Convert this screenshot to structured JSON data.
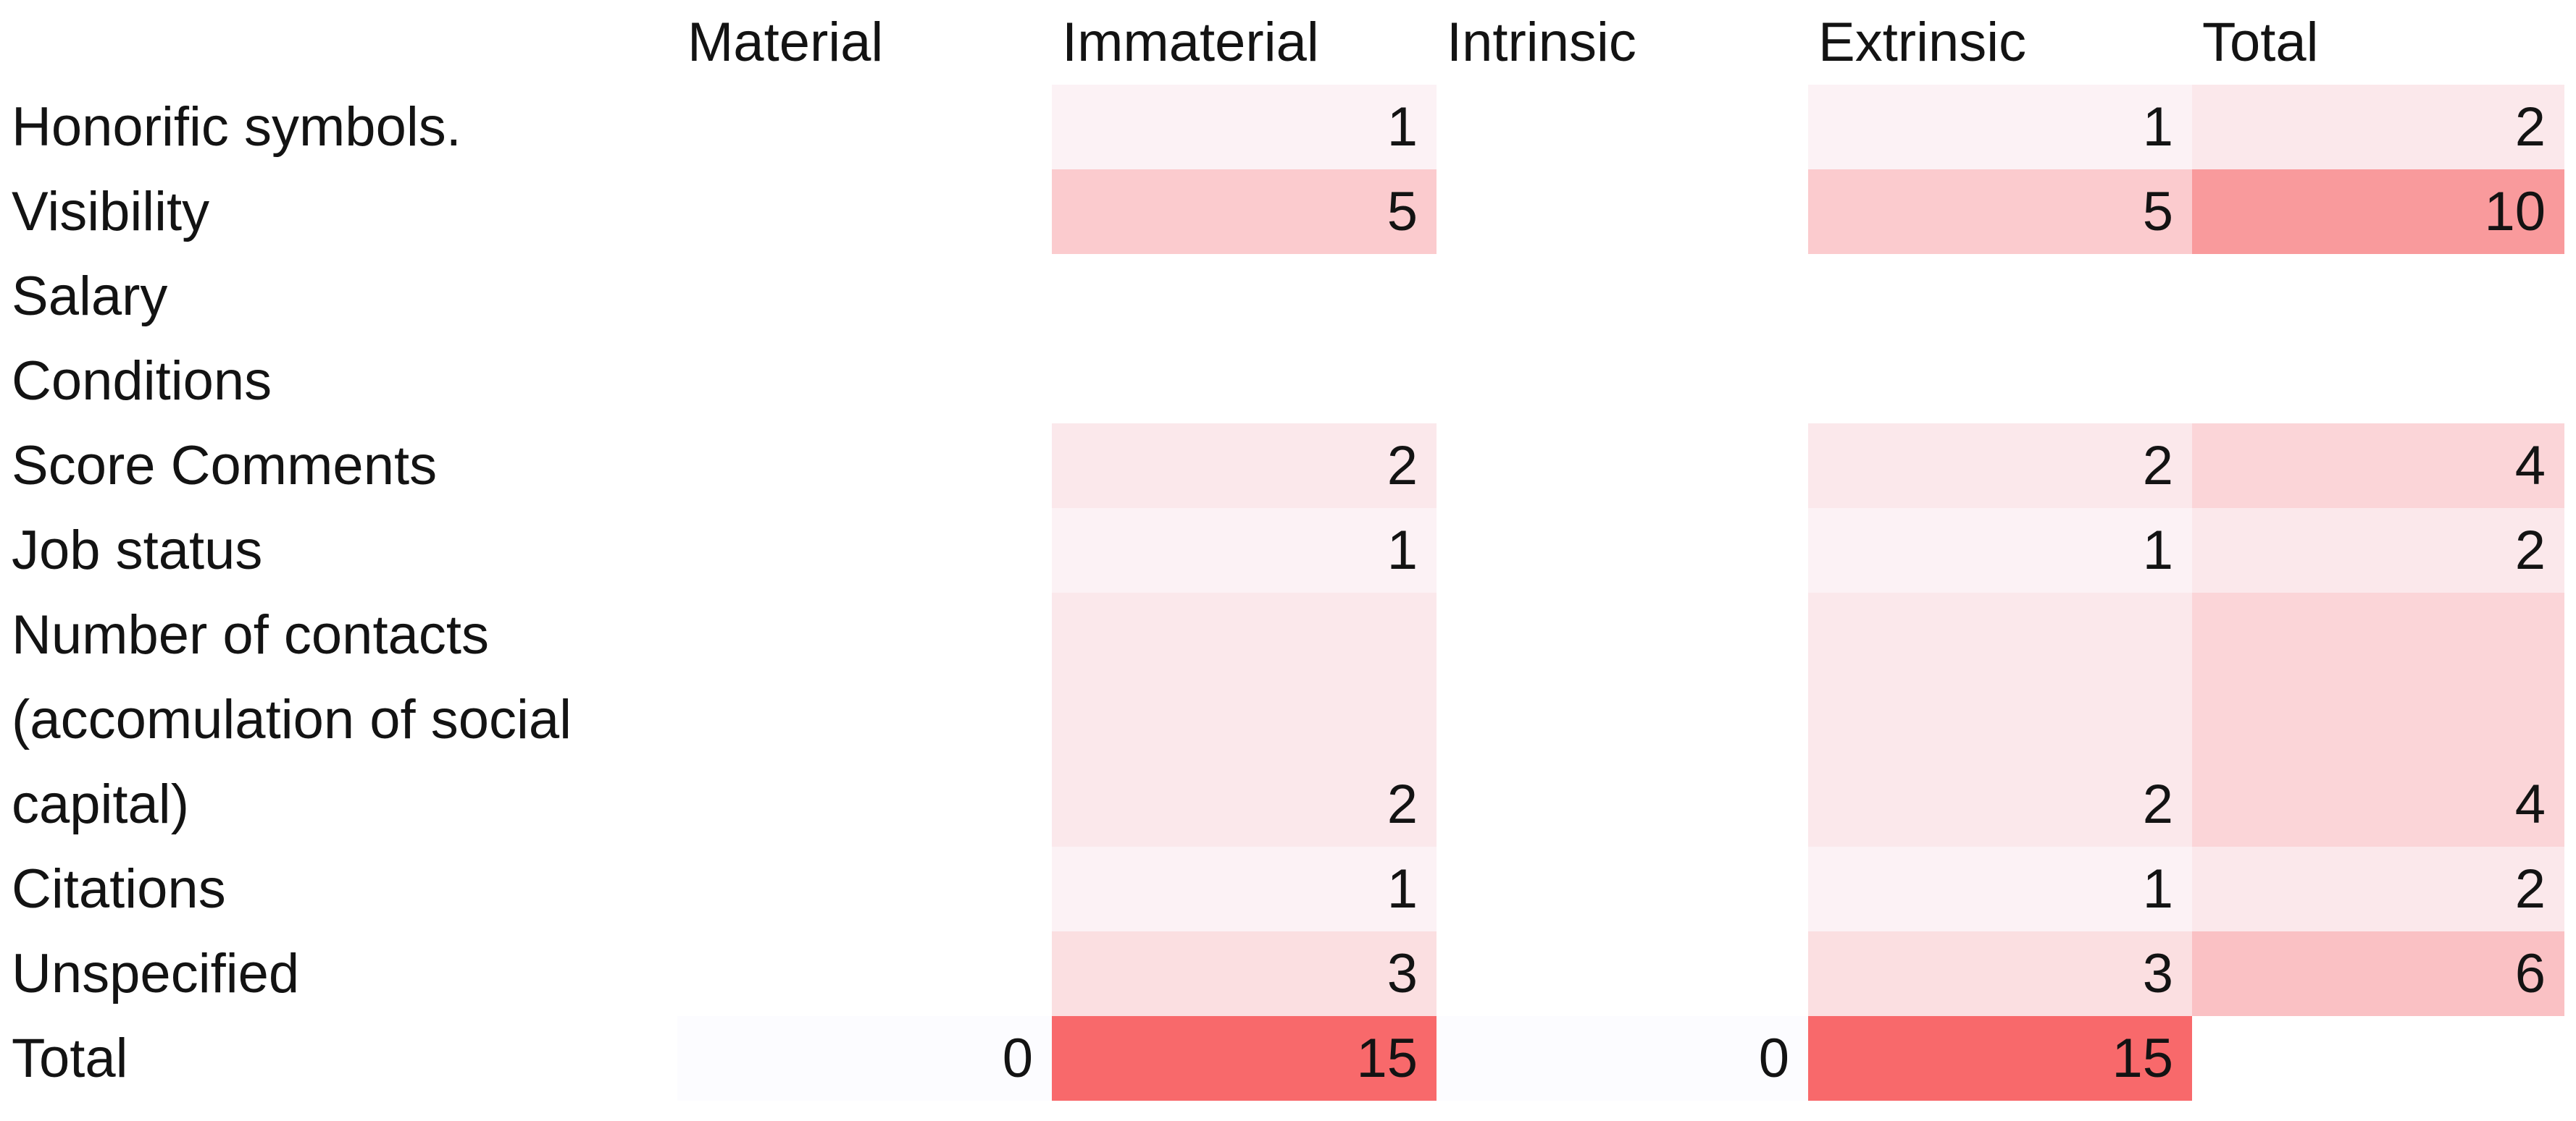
{
  "chart_data": {
    "type": "heatmap",
    "title": "",
    "columns": [
      "Material",
      "Immaterial",
      "Intrinsic",
      "Extrinsic",
      "Total"
    ],
    "rows": [
      {
        "label": "Honorific symbols.",
        "values": [
          null,
          1,
          null,
          1,
          2
        ]
      },
      {
        "label": "Visibility",
        "values": [
          null,
          5,
          null,
          5,
          10
        ]
      },
      {
        "label": "Salary",
        "values": [
          null,
          null,
          null,
          null,
          null
        ]
      },
      {
        "label": "Conditions",
        "values": [
          null,
          null,
          null,
          null,
          null
        ]
      },
      {
        "label": "Score Comments",
        "values": [
          null,
          2,
          null,
          2,
          4
        ]
      },
      {
        "label": "Job status",
        "values": [
          null,
          1,
          null,
          1,
          2
        ]
      },
      {
        "label": "Number of contacts\n(accomulation of social\ncapital)",
        "rowspan": 3,
        "values": [
          null,
          2,
          null,
          2,
          4
        ]
      },
      {
        "label": "Citations",
        "values": [
          null,
          1,
          null,
          1,
          2
        ]
      },
      {
        "label": "Unspecified",
        "values": [
          null,
          3,
          null,
          3,
          6
        ]
      },
      {
        "label": "Total",
        "values": [
          0,
          15,
          0,
          15,
          null
        ]
      }
    ],
    "color_scale": {
      "min_value": 0,
      "max_value": 15,
      "min_color": "#FCFCFF",
      "max_color": "#F8696B"
    },
    "text_color": "#131313",
    "background": "#FFFFFF",
    "legend": "none",
    "grid": "off"
  }
}
